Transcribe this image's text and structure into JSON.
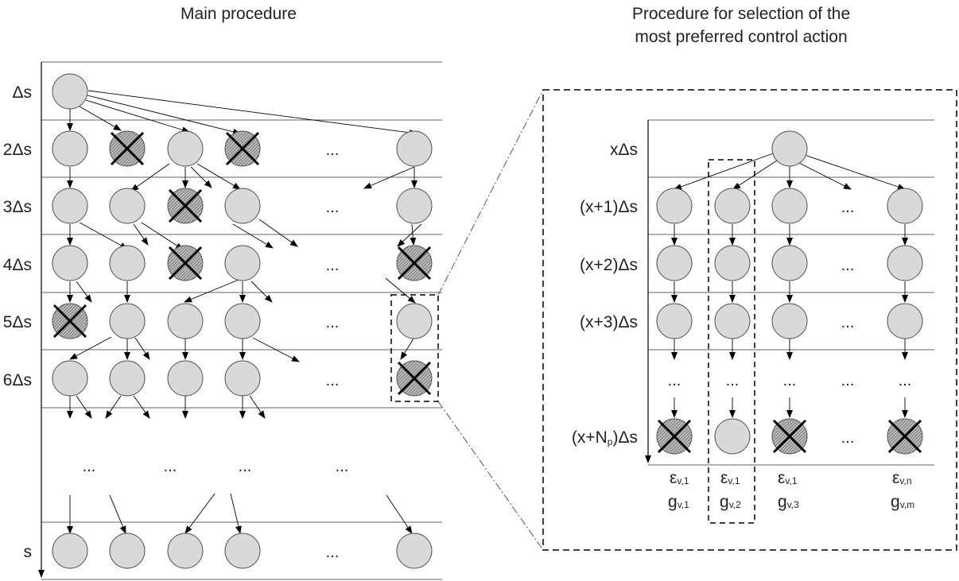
{
  "left_panel": {
    "title": "Main procedure",
    "row_labels": [
      "Δs",
      "2Δs",
      "3Δs",
      "4Δs",
      "5Δs",
      "6Δs",
      "s"
    ],
    "ellipsis": "..."
  },
  "right_panel": {
    "title_line1": "Procedure for selection of the",
    "title_line2": "most preferred control action",
    "row_labels": [
      "xΔs",
      "(x+1)Δs",
      "(x+2)Δs",
      "(x+3)Δs"
    ],
    "last_row_label": {
      "prefix": "(x+N",
      "sub": "p",
      "suffix": ")Δs"
    },
    "ellipsis": "...",
    "epsilon_labels": [
      {
        "main": "ε",
        "sub": "v,1"
      },
      {
        "main": "ε",
        "sub": "v,1"
      },
      {
        "main": "ε",
        "sub": "v,1"
      },
      {
        "main": "ε",
        "sub": "v,n"
      }
    ],
    "g_labels": [
      {
        "main": "g",
        "sub": "v,1"
      },
      {
        "main": "g",
        "sub": "v,2"
      },
      {
        "main": "g",
        "sub": "v,3"
      },
      {
        "main": "g",
        "sub": "v,m"
      }
    ]
  },
  "colors": {
    "node_fill": "#d9d9d9",
    "rejected_fill": "#a6a6a6",
    "line": "#000000",
    "row_line": "#666666"
  }
}
